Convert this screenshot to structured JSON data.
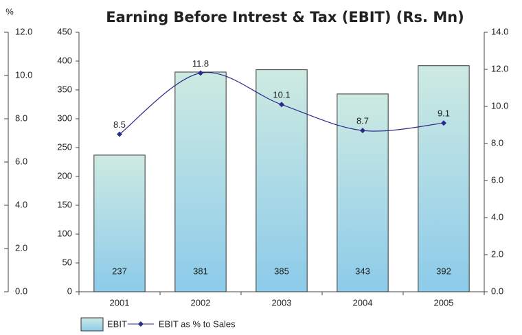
{
  "chart_data": {
    "type": "bar-line",
    "title": "Earning Before Intrest & Tax (EBIT) (Rs. Mn)",
    "categories": [
      "2001",
      "2002",
      "2003",
      "2004",
      "2005"
    ],
    "series": [
      {
        "name": "EBIT",
        "type": "bar",
        "color": "#8ccbea",
        "values": [
          237,
          381,
          385,
          343,
          392
        ]
      },
      {
        "name": "EBIT as % to Sales",
        "type": "line",
        "axis": "y2",
        "color": "#2b2b8a",
        "values": [
          8.5,
          11.8,
          10.1,
          8.7,
          9.1
        ]
      }
    ],
    "ylim": [
      0,
      450
    ],
    "yticks": [
      0,
      50,
      100,
      150,
      200,
      250,
      300,
      350,
      400,
      450
    ],
    "y2lim": [
      0,
      14
    ],
    "y2ticks": [
      {
        "value": 0,
        "label": "0.0"
      },
      {
        "value": 2,
        "label": "2.0"
      },
      {
        "value": 4,
        "label": "4.0"
      },
      {
        "value": 6,
        "label": "6.0"
      },
      {
        "value": 8,
        "label": "8.0"
      },
      {
        "value": 10,
        "label": "10.0"
      },
      {
        "value": 12,
        "label": "12.0"
      },
      {
        "value": 14,
        "label": "14.0"
      }
    ],
    "pct_axis": {
      "label": "%",
      "lim": [
        0,
        12
      ],
      "ticks": [
        {
          "value": 0,
          "label": "0.0"
        },
        {
          "value": 2,
          "label": "2.0"
        },
        {
          "value": 4,
          "label": "4.0"
        },
        {
          "value": 6,
          "label": "6.0"
        },
        {
          "value": 8,
          "label": "8.0"
        },
        {
          "value": 10,
          "label": "10.0"
        },
        {
          "value": 12,
          "label": "12.0"
        }
      ]
    },
    "legend": "bottom-left"
  }
}
